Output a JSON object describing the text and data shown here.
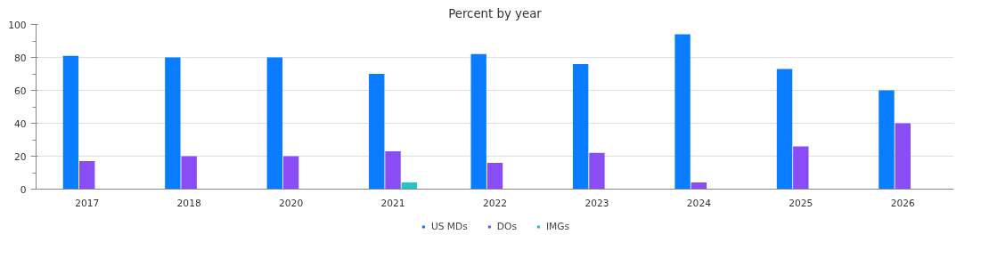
{
  "chart_data": {
    "type": "bar",
    "title": "Percent by year",
    "categories": [
      "2017",
      "2018",
      "2020",
      "2021",
      "2022",
      "2023",
      "2024",
      "2025",
      "2026"
    ],
    "series": [
      {
        "name": "US MDs",
        "color": "#0a7cff",
        "values": [
          81,
          80,
          80,
          70,
          82,
          76,
          94,
          73,
          60
        ]
      },
      {
        "name": "DOs",
        "color": "#8a4cf5",
        "values": [
          17,
          20,
          20,
          23,
          16,
          22,
          4,
          26,
          40
        ]
      },
      {
        "name": "IMGs",
        "color": "#22c4c4",
        "values": [
          null,
          null,
          null,
          4,
          null,
          null,
          null,
          null,
          null
        ]
      }
    ],
    "ylim": [
      0,
      100
    ],
    "yticks": [
      0,
      {
        "value": 10,
        "label": null
      },
      20,
      {
        "value": 30,
        "label": null
      },
      40,
      {
        "value": 50,
        "label": null
      },
      60,
      {
        "value": 70,
        "label": null
      },
      80,
      {
        "value": 90,
        "label": null
      },
      100
    ],
    "grid": "y",
    "legend": "bottom"
  }
}
